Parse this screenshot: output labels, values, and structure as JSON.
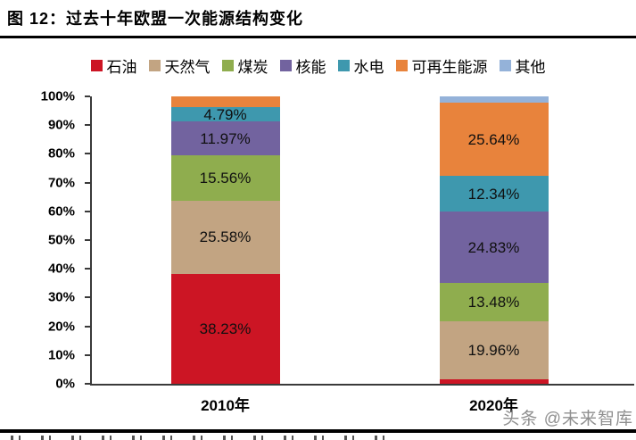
{
  "header": {
    "title": "图 12：过去十年欧盟一次能源结构变化"
  },
  "watermark": {
    "text": "头条 @未来智库"
  },
  "chart_data": {
    "type": "bar",
    "stacked": true,
    "title": "图 12：过去十年欧盟一次能源结构变化",
    "categories": [
      "2010年",
      "2020年"
    ],
    "series": [
      {
        "name": "石油",
        "color": "#CC1524",
        "values": [
          38.23,
          1.65
        ],
        "labels": [
          "38.23%",
          ""
        ]
      },
      {
        "name": "天然气",
        "color": "#C2A482",
        "values": [
          25.58,
          19.96
        ],
        "labels": [
          "25.58%",
          "19.96%"
        ]
      },
      {
        "name": "煤炭",
        "color": "#8FAD4E",
        "values": [
          15.56,
          13.48
        ],
        "labels": [
          "15.56%",
          "13.48%"
        ]
      },
      {
        "name": "核能",
        "color": "#72639F",
        "values": [
          11.97,
          24.83
        ],
        "labels": [
          "11.97%",
          "24.83%"
        ]
      },
      {
        "name": "水电",
        "color": "#3E98AE",
        "values": [
          4.79,
          12.34
        ],
        "labels": [
          "4.79%",
          "12.34%"
        ]
      },
      {
        "name": "可再生能源",
        "color": "#E8833C",
        "values": [
          3.87,
          25.64
        ],
        "labels": [
          "",
          "25.64%"
        ]
      },
      {
        "name": "其他",
        "color": "#94B2D9",
        "values": [
          0.0,
          2.1
        ],
        "labels": [
          "",
          ""
        ]
      }
    ],
    "y_axis": {
      "min": 0,
      "max": 100,
      "ticks": [
        "0%",
        "10%",
        "20%",
        "30%",
        "40%",
        "50%",
        "60%",
        "70%",
        "80%",
        "90%",
        "100%"
      ]
    },
    "legend_position": "top",
    "gridlines": false
  }
}
